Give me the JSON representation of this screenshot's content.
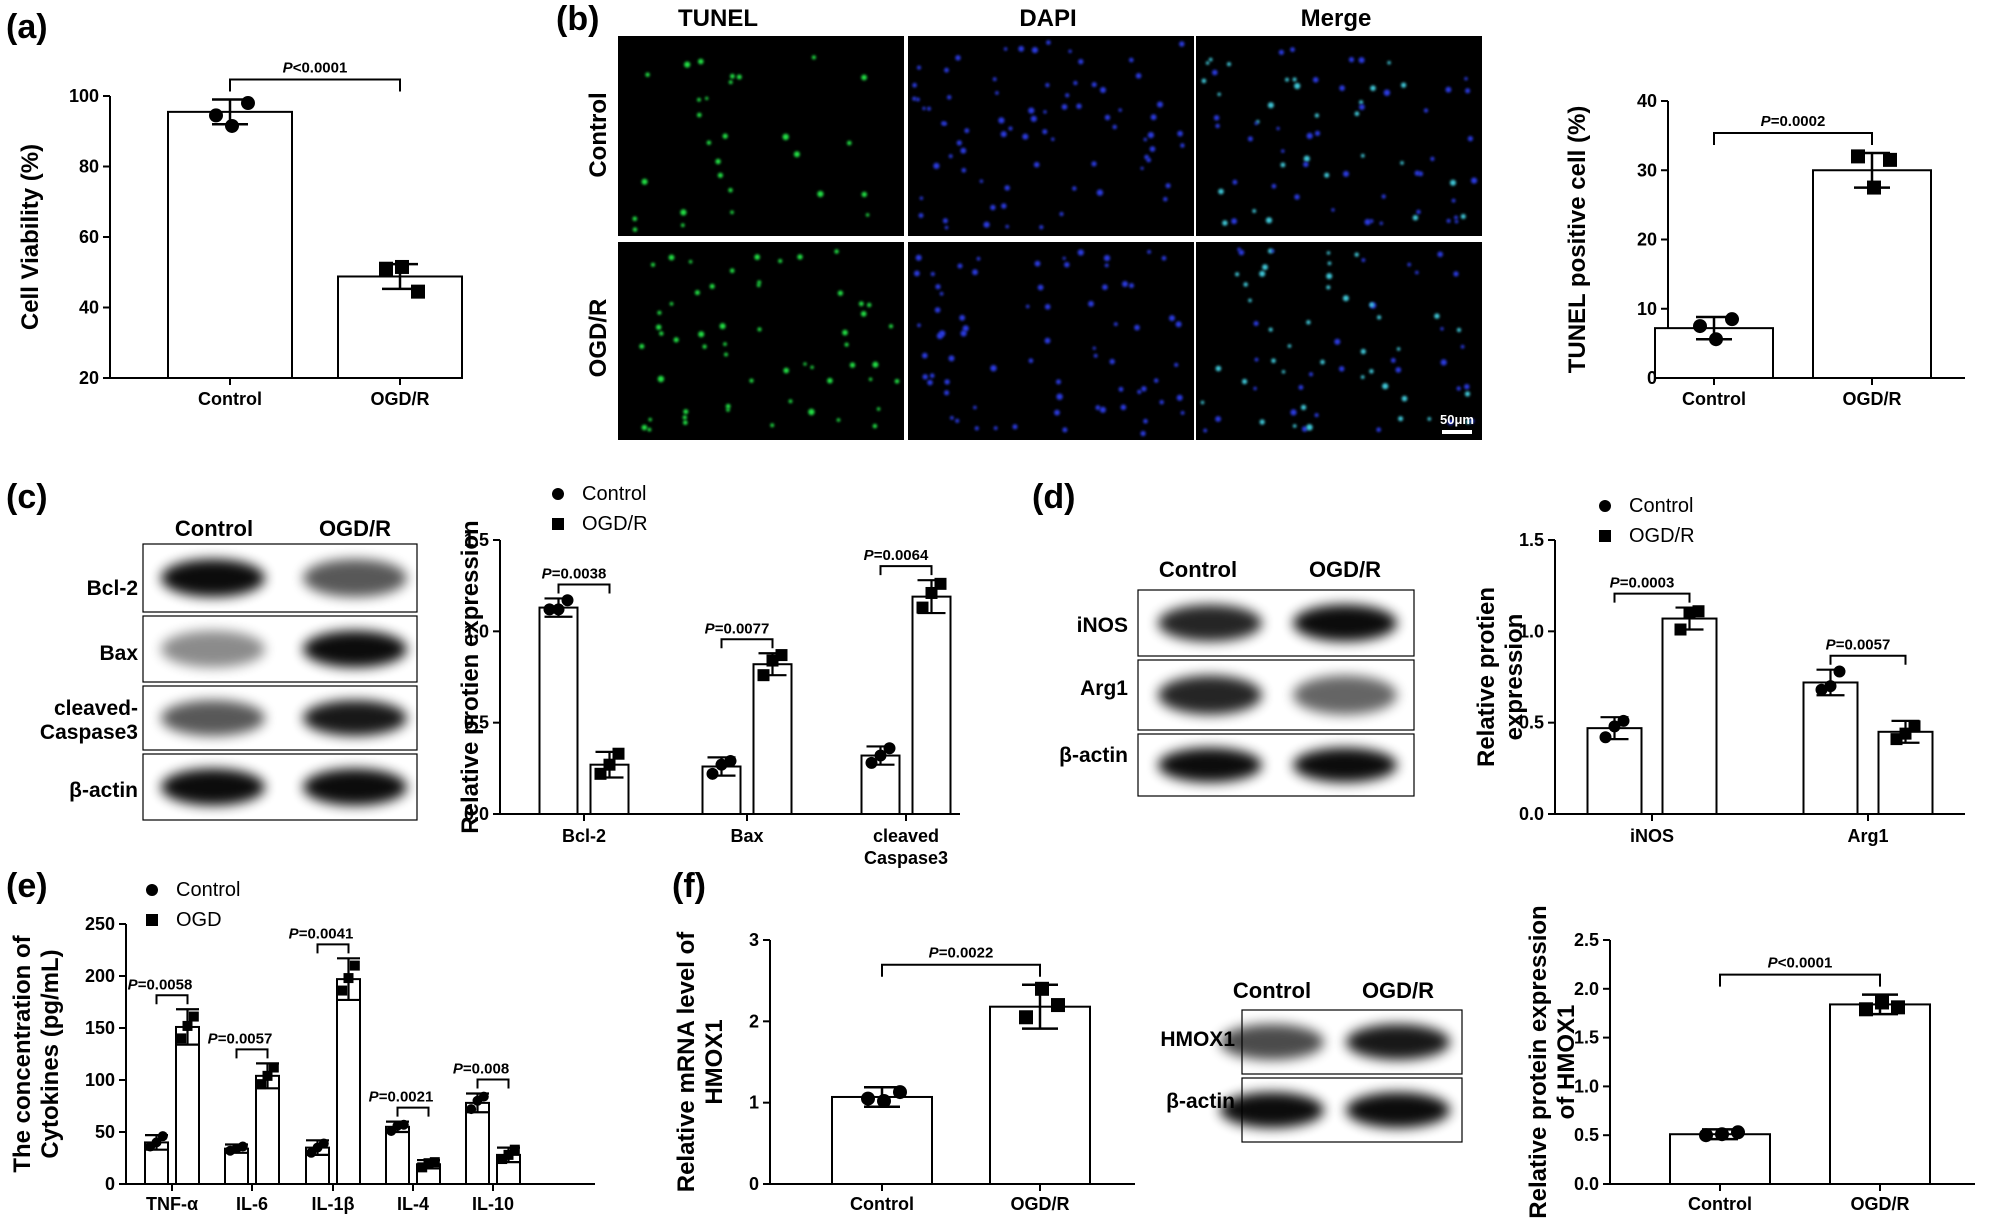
{
  "panels": {
    "a": "(a)",
    "b": "(b)",
    "c": "(c)",
    "d": "(d)",
    "e": "(e)",
    "f": "(f)"
  },
  "microscopy": {
    "columns": [
      "TUNEL",
      "DAPI",
      "Merge"
    ],
    "rows": [
      "Control",
      "OGD/R"
    ],
    "scalebar": "50μm"
  },
  "blots": {
    "c": {
      "columns": [
        "Control",
        "OGD/R"
      ],
      "rows": [
        "Bcl-2",
        "Bax",
        "cleaved-\nCaspase3",
        "β-actin"
      ]
    },
    "d": {
      "columns": [
        "Control",
        "OGD/R"
      ],
      "rows": [
        "iNOS",
        "Arg1",
        "β-actin"
      ]
    },
    "f": {
      "columns": [
        "Control",
        "OGD/R"
      ],
      "rows": [
        "HMOX1",
        "β-actin"
      ]
    }
  },
  "colors": {
    "tunel": "#22e045",
    "dapi": "#2a3ae0",
    "merge_cell": "#40c8d8",
    "bar_fill": "#ffffff",
    "stroke": "#000000",
    "background_micro": "#000000"
  },
  "chart_data": [
    {
      "id": "a",
      "type": "bar",
      "categories": [
        "Control",
        "OGD/R"
      ],
      "values": [
        95.5,
        48.8
      ],
      "errors": [
        3.5,
        3.5
      ],
      "points": [
        [
          94.5,
          91.5,
          98.0
        ],
        [
          51.0,
          51.5,
          44.5
        ]
      ],
      "ylabel": "Cell Viability (%)",
      "ylim": [
        20,
        100
      ],
      "yticks": [
        20,
        40,
        60,
        80,
        100
      ],
      "comparisons": [
        {
          "from": 0,
          "to": 1,
          "label": "P<0.0001"
        }
      ]
    },
    {
      "id": "b",
      "type": "bar",
      "categories": [
        "Control",
        "OGD/R"
      ],
      "values": [
        7.2,
        30.0
      ],
      "errors": [
        1.6,
        2.5
      ],
      "points": [
        [
          7.5,
          5.6,
          8.5
        ],
        [
          32.0,
          27.5,
          31.5
        ]
      ],
      "ylabel": "TUNEL positive cell (%)",
      "ylim": [
        0,
        40
      ],
      "yticks": [
        0,
        10,
        20,
        30,
        40
      ],
      "comparisons": [
        {
          "from": 0,
          "to": 1,
          "label": "P=0.0002"
        }
      ]
    },
    {
      "id": "c",
      "type": "bar",
      "categories": [
        "Bcl-2",
        "Bax",
        "cleaved\nCaspase3"
      ],
      "series": [
        {
          "name": "Control",
          "values": [
            1.13,
            0.26,
            0.32
          ],
          "errors": [
            0.05,
            0.05,
            0.05
          ],
          "points": [
            [
              1.12,
              1.12,
              1.17
            ],
            [
              0.22,
              0.27,
              0.29
            ],
            [
              0.28,
              0.32,
              0.36
            ]
          ]
        },
        {
          "name": "OGD/R",
          "values": [
            0.27,
            0.82,
            1.19
          ],
          "errors": [
            0.07,
            0.06,
            0.09
          ],
          "points": [
            [
              0.22,
              0.27,
              0.33
            ],
            [
              0.76,
              0.84,
              0.87
            ],
            [
              1.13,
              1.21,
              1.26
            ]
          ]
        }
      ],
      "ylabel": "Relative protien expression",
      "ylim": [
        0,
        1.5
      ],
      "yticks": [
        0.0,
        0.5,
        1.0,
        1.5
      ],
      "comparisons": [
        {
          "group": 0,
          "label": "P=0.0038"
        },
        {
          "group": 1,
          "label": "P=0.0077"
        },
        {
          "group": 2,
          "label": "P=0.0064"
        }
      ],
      "legend": "top-left"
    },
    {
      "id": "d",
      "type": "bar",
      "categories": [
        "iNOS",
        "Arg1"
      ],
      "series": [
        {
          "name": "Control",
          "values": [
            0.47,
            0.72
          ],
          "errors": [
            0.06,
            0.07
          ],
          "points": [
            [
              0.42,
              0.48,
              0.51
            ],
            [
              0.68,
              0.7,
              0.78
            ]
          ]
        },
        {
          "name": "OGD/R",
          "values": [
            1.07,
            0.45
          ],
          "errors": [
            0.06,
            0.06
          ],
          "points": [
            [
              1.01,
              1.1,
              1.11
            ],
            [
              0.41,
              0.44,
              0.48
            ]
          ]
        }
      ],
      "ylabel": "Relative protien\nexpression",
      "ylim": [
        0,
        1.5
      ],
      "yticks": [
        0.0,
        0.5,
        1.0,
        1.5
      ],
      "comparisons": [
        {
          "group": 0,
          "label": "P=0.0003"
        },
        {
          "group": 1,
          "label": "P=0.0057"
        }
      ],
      "legend": "top-left"
    },
    {
      "id": "e",
      "type": "bar",
      "categories": [
        "TNF-α",
        "IL-6",
        "IL-1β",
        "IL-4",
        "IL-10"
      ],
      "series": [
        {
          "name": "Control",
          "values": [
            40,
            34,
            35,
            55,
            78
          ],
          "errors": [
            7,
            4,
            7,
            5,
            9
          ],
          "points": [
            [
              36,
              40,
              46
            ],
            [
              32,
              34,
              36
            ],
            [
              30,
              35,
              39
            ],
            [
              51,
              56,
              57
            ],
            [
              72,
              80,
              84
            ]
          ]
        },
        {
          "name": "OGD",
          "values": [
            151,
            104,
            197,
            19,
            28
          ],
          "errors": [
            17,
            12,
            20,
            4,
            7
          ],
          "points": [
            [
              140,
              152,
              161
            ],
            [
              96,
              104,
              112
            ],
            [
              186,
              198,
              210
            ],
            [
              16,
              20,
              21
            ],
            [
              24,
              28,
              33
            ]
          ]
        }
      ],
      "ylabel": "The concentration of\nCytokines (pg/mL)",
      "ylim": [
        0,
        250
      ],
      "yticks": [
        0,
        50,
        100,
        150,
        200,
        250
      ],
      "comparisons": [
        {
          "group": 0,
          "label": "P=0.0058"
        },
        {
          "group": 1,
          "label": "P=0.0057"
        },
        {
          "group": 2,
          "label": "P=0.0041"
        },
        {
          "group": 3,
          "label": "P=0.0021"
        },
        {
          "group": 4,
          "label": "P=0.008"
        }
      ],
      "legend": "top-left"
    },
    {
      "id": "f1",
      "type": "bar",
      "categories": [
        "Control",
        "OGD/R"
      ],
      "values": [
        1.07,
        2.18
      ],
      "errors": [
        0.12,
        0.27
      ],
      "points": [
        [
          1.05,
          1.02,
          1.13
        ],
        [
          2.05,
          2.4,
          2.2
        ]
      ],
      "ylabel": "Relative mRNA level of\nHMOX1",
      "ylim": [
        0,
        3
      ],
      "yticks": [
        0,
        1,
        2,
        3
      ],
      "comparisons": [
        {
          "from": 0,
          "to": 1,
          "label": "P=0.0022"
        }
      ]
    },
    {
      "id": "f2",
      "type": "bar",
      "categories": [
        "Control",
        "OGD/R"
      ],
      "values": [
        0.51,
        1.84
      ],
      "errors": [
        0.05,
        0.1
      ],
      "points": [
        [
          0.5,
          0.51,
          0.53
        ],
        [
          1.79,
          1.86,
          1.81
        ]
      ],
      "ylabel": "Relative protein expression\nof HMOX1",
      "ylim": [
        0,
        2.5
      ],
      "yticks": [
        0.0,
        0.5,
        1.0,
        1.5,
        2.0,
        2.5
      ],
      "comparisons": [
        {
          "from": 0,
          "to": 1,
          "label": "P<0.0001"
        }
      ]
    }
  ]
}
